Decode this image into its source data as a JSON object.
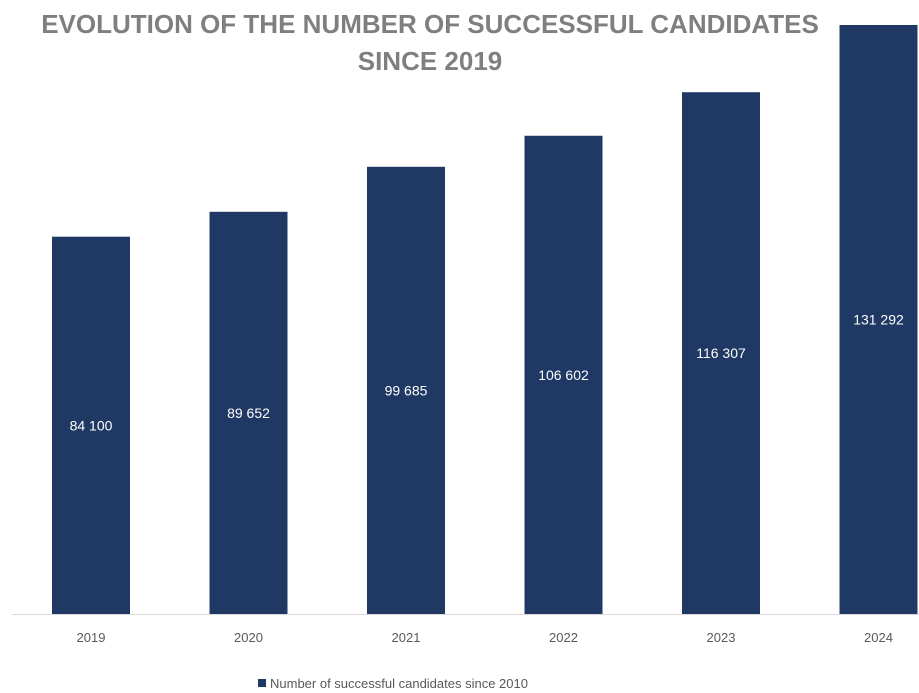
{
  "chart_data": {
    "type": "bar",
    "title": "EVOLUTION OF THE NUMBER OF SUCCESSFUL CANDIDATES SINCE 2019",
    "categories": [
      "2019",
      "2020",
      "2021",
      "2022",
      "2023",
      "2024"
    ],
    "series": [
      {
        "name": "Number of successful candidates since 2010",
        "values": [
          84100,
          89652,
          99685,
          106602,
          116307,
          131292
        ],
        "labels": [
          "84 100",
          "89 652",
          "99 685",
          "106 602",
          "116 307",
          "131 292"
        ]
      }
    ],
    "xlabel": "",
    "ylabel": "",
    "ylim": [
      0,
      131292
    ],
    "grid": false,
    "legend_position": "bottom",
    "bar_color": "#1f3864"
  }
}
